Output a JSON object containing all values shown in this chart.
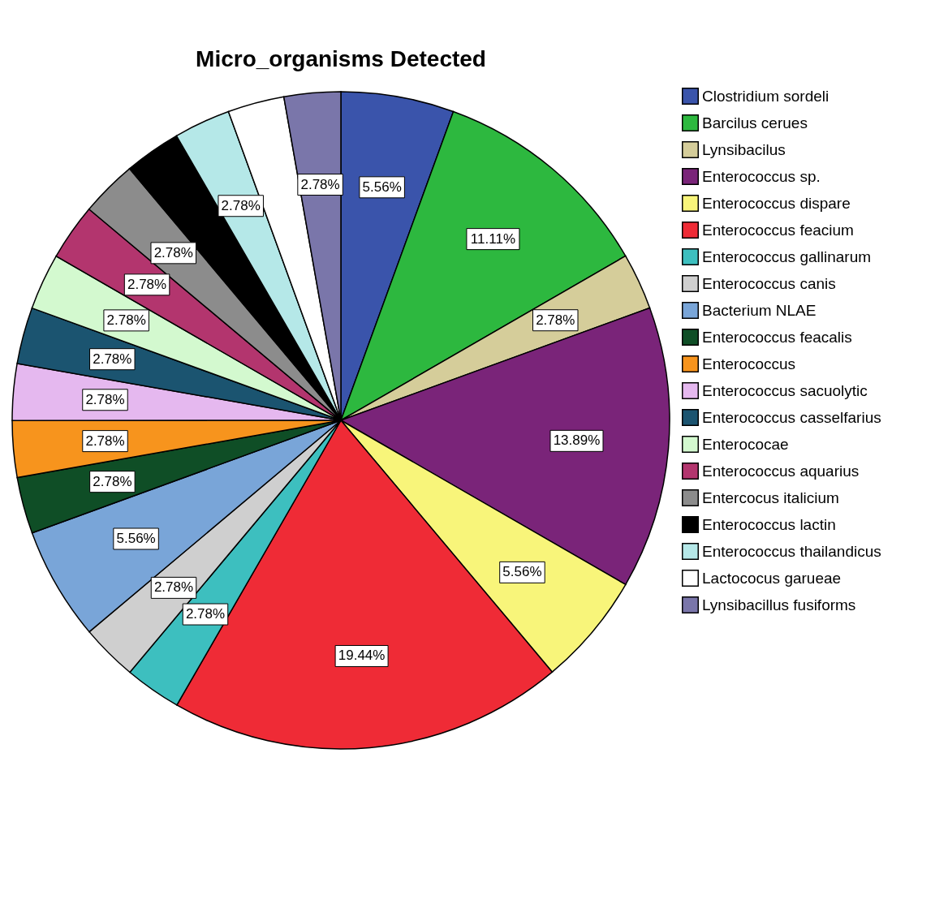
{
  "chart_data": {
    "type": "pie",
    "title": "Micro_organisms Detected",
    "categories": [
      "Clostridium sordeli",
      "Barcilus cerues",
      "Lynsibacilus",
      "Enterococcus sp.",
      "Enterococcus dispare",
      "Enterococcus feacium",
      "Enterococcus gallinarum",
      "Enterococcus canis",
      "Bacterium NLAE",
      "Enterococcus feacalis",
      "Enterococcus",
      "Enterococcus sacuolytic",
      "Enterococcus casselfarius",
      "Enterococae",
      "Enterococcus aquarius",
      "Entercocus italicium",
      "Enterococcus lactin",
      "Enterococcus thailandicus",
      "Lactococus garueae",
      "Lynsibacillus fusiforms"
    ],
    "values": [
      5.56,
      11.11,
      2.78,
      13.89,
      5.56,
      19.44,
      2.78,
      2.78,
      5.56,
      2.78,
      2.78,
      2.78,
      2.78,
      2.78,
      2.78,
      2.78,
      2.78,
      2.78,
      2.78,
      2.78
    ],
    "value_labels": [
      "5.56%",
      "11.11%",
      "2.78%",
      "13.89%",
      "5.56%",
      "19.44%",
      "2.78%",
      "2.78%",
      "5.56%",
      "2.78%",
      "2.78%",
      "2.78%",
      "2.78%",
      "2.78%",
      "2.78%",
      "2.78%",
      null,
      "2.78%",
      null,
      "2.78%"
    ],
    "colors": [
      "#3a54ab",
      "#2db83f",
      "#d5cd9a",
      "#7a2479",
      "#f8f57a",
      "#ef2b36",
      "#3dbfbf",
      "#cfcfcf",
      "#79a5d8",
      "#0f4e26",
      "#f7941d",
      "#e5b8ef",
      "#1b5470",
      "#d3f9cf",
      "#b3356e",
      "#8c8c8c",
      "#000000",
      "#b5e8e8",
      "#ffffff",
      "#7a76aa"
    ],
    "legend": "right"
  }
}
